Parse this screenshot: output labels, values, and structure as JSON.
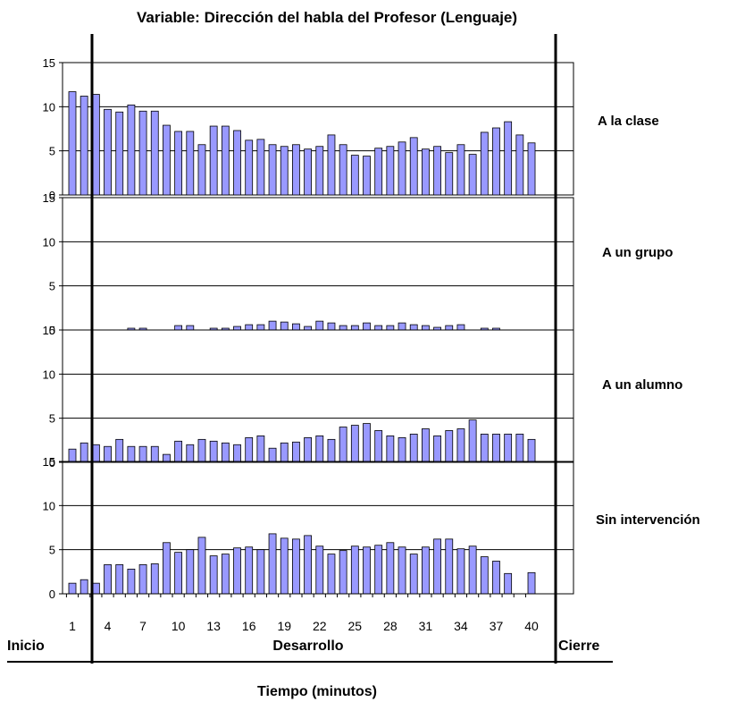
{
  "chart_data": {
    "type": "bar",
    "title": "Variable: Dirección del habla del Profesor (Lenguaje)",
    "xlabel": "Tiempo (minutos)",
    "x": [
      1,
      2,
      3,
      4,
      5,
      6,
      7,
      8,
      9,
      10,
      11,
      12,
      13,
      14,
      15,
      16,
      17,
      18,
      19,
      20,
      21,
      22,
      23,
      24,
      25,
      26,
      27,
      28,
      29,
      30,
      31,
      32,
      33,
      34,
      35,
      36,
      37,
      38,
      39,
      40
    ],
    "x_tick_labels": [
      "1",
      "4",
      "7",
      "10",
      "13",
      "16",
      "19",
      "22",
      "25",
      "28",
      "31",
      "34",
      "37",
      "40"
    ],
    "x_tick_positions": [
      1,
      4,
      7,
      10,
      13,
      16,
      19,
      22,
      25,
      28,
      31,
      34,
      37,
      40
    ],
    "ylim": [
      0,
      15
    ],
    "y_ticks": [
      0,
      5,
      10,
      15
    ],
    "y_tick_labels": {
      "panel_1": [
        "15",
        "10",
        "5",
        "0"
      ],
      "panel_2": [
        "15",
        "10",
        "5",
        "0"
      ],
      "panel_3": [
        "15",
        "10",
        "5",
        "0"
      ],
      "panel_4": [
        "15",
        "10",
        "5",
        "0"
      ]
    },
    "phases": [
      {
        "label": "Inicio"
      },
      {
        "label": "Desarrollo"
      },
      {
        "label": "Cierre"
      }
    ],
    "bar_color": "#9999ff",
    "series": [
      {
        "name": "A la clase",
        "values": [
          11.7,
          11.2,
          11.4,
          9.7,
          9.4,
          10.2,
          9.5,
          9.5,
          7.9,
          7.2,
          7.2,
          5.7,
          7.8,
          7.8,
          7.3,
          6.2,
          6.3,
          5.7,
          5.5,
          5.7,
          5.2,
          5.5,
          6.8,
          5.7,
          4.5,
          4.4,
          5.3,
          5.5,
          6.0,
          6.5,
          5.2,
          5.5,
          4.8,
          5.7,
          4.6,
          7.1,
          7.6,
          8.3,
          6.8,
          5.9
        ]
      },
      {
        "name": "A un grupo",
        "values": [
          0,
          0,
          0,
          0,
          0,
          0.2,
          0.2,
          0,
          0,
          0.5,
          0.5,
          0,
          0.2,
          0.2,
          0.4,
          0.6,
          0.6,
          1.0,
          0.9,
          0.7,
          0.4,
          1.0,
          0.8,
          0.5,
          0.5,
          0.8,
          0.5,
          0.5,
          0.8,
          0.6,
          0.5,
          0.3,
          0.5,
          0.6,
          0,
          0.2,
          0.2,
          0,
          0,
          0
        ]
      },
      {
        "name": "A un alumno",
        "values": [
          1.5,
          2.2,
          2.0,
          1.8,
          2.6,
          1.8,
          1.8,
          1.8,
          0.9,
          2.4,
          2.0,
          2.6,
          2.4,
          2.2,
          2.0,
          2.8,
          3.0,
          1.6,
          2.2,
          2.3,
          2.8,
          3.0,
          2.6,
          4.0,
          4.2,
          4.4,
          3.6,
          3.0,
          2.8,
          3.2,
          3.8,
          3.0,
          3.6,
          3.8,
          4.8,
          3.2,
          3.2,
          3.2,
          3.2,
          2.6
        ]
      },
      {
        "name": "Sin intervención",
        "values": [
          1.2,
          1.6,
          1.2,
          3.3,
          3.3,
          2.8,
          3.3,
          3.4,
          5.8,
          4.7,
          5.0,
          6.4,
          4.3,
          4.5,
          5.2,
          5.3,
          5.0,
          6.8,
          6.3,
          6.2,
          6.6,
          5.4,
          4.5,
          4.9,
          5.4,
          5.3,
          5.5,
          5.8,
          5.3,
          4.5,
          5.3,
          6.2,
          6.2,
          5.1,
          5.4,
          4.2,
          3.7,
          2.3,
          0,
          2.4
        ]
      }
    ]
  }
}
